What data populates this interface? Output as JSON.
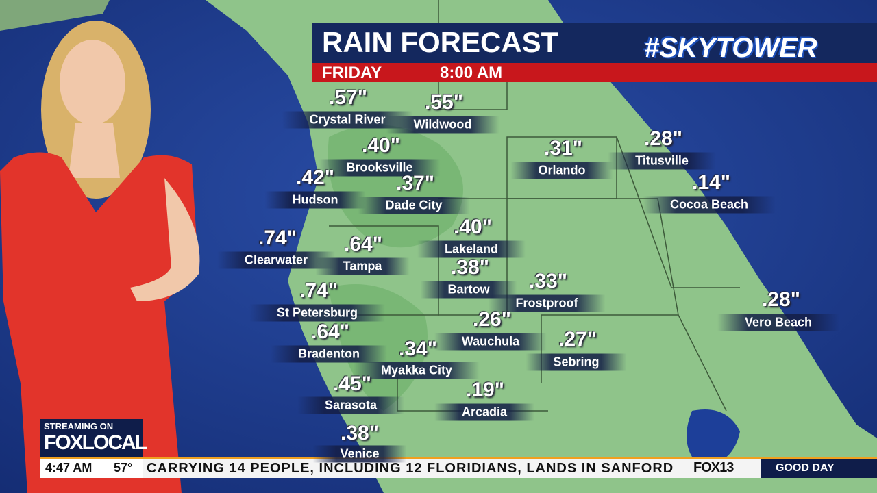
{
  "header": {
    "title": "RAIN FORECAST",
    "day": "FRIDAY",
    "time": "8:00 AM",
    "brand": "#SKYTOWER"
  },
  "locations": [
    {
      "name": "Crystal River",
      "amount": ".57\""
    },
    {
      "name": "Wildwood",
      "amount": ".55\""
    },
    {
      "name": "Brooksville",
      "amount": ".40\""
    },
    {
      "name": "Orlando",
      "amount": ".31\""
    },
    {
      "name": "Titusville",
      "amount": ".28\""
    },
    {
      "name": "Hudson",
      "amount": ".42\""
    },
    {
      "name": "Dade City",
      "amount": ".37\""
    },
    {
      "name": "Cocoa Beach",
      "amount": ".14\""
    },
    {
      "name": "Lakeland",
      "amount": ".40\""
    },
    {
      "name": "Clearwater",
      "amount": ".74\""
    },
    {
      "name": "Tampa",
      "amount": ".64\""
    },
    {
      "name": "Bartow",
      "amount": ".38\""
    },
    {
      "name": "Frostproof",
      "amount": ".33\""
    },
    {
      "name": "Vero Beach",
      "amount": ".28\""
    },
    {
      "name": "St Petersburg",
      "amount": ".74\""
    },
    {
      "name": "Wauchula",
      "amount": ".26\""
    },
    {
      "name": "Bradenton",
      "amount": ".64\""
    },
    {
      "name": "Sebring",
      "amount": ".27\""
    },
    {
      "name": "Myakka City",
      "amount": ".34\""
    },
    {
      "name": "Sarasota",
      "amount": ".45\""
    },
    {
      "name": "Arcadia",
      "amount": ".19\""
    },
    {
      "name": "Venice",
      "amount": ".38\""
    }
  ],
  "lower_third": {
    "streaming": "STREAMING ON",
    "network": "FOXLOCAL",
    "clock": "4:47 AM",
    "temperature": "57°",
    "ticker": "CARRYING 14 PEOPLE, INCLUDING 12 FLORIDIANS, LANDS IN SANFORD",
    "station": "FOX13",
    "show": "GOOD DAY"
  }
}
